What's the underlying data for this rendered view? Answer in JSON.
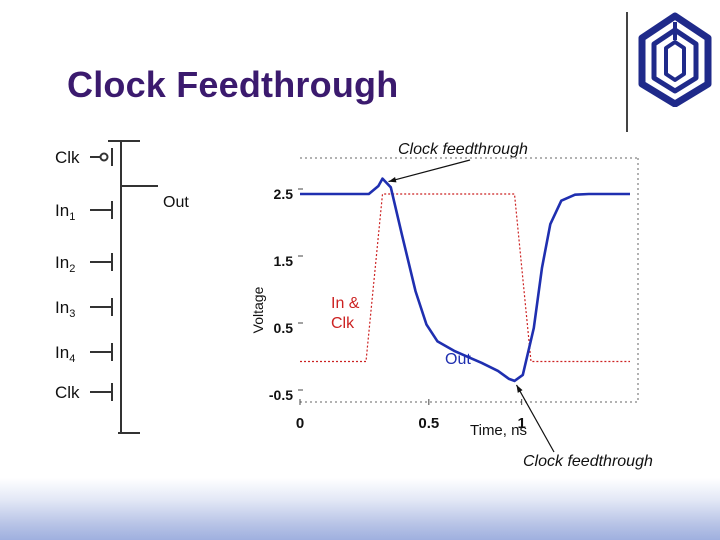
{
  "slide": {
    "title": "Clock Feedthrough"
  },
  "circuit": {
    "inputs": [
      {
        "label": "Clk",
        "sub": ""
      },
      {
        "label": "In",
        "sub": "1"
      },
      {
        "label": "In",
        "sub": "2"
      },
      {
        "label": "In",
        "sub": "3"
      },
      {
        "label": "In",
        "sub": "4"
      },
      {
        "label": "Clk",
        "sub": ""
      }
    ],
    "output_label": "Out"
  },
  "chart_data": {
    "type": "line",
    "xlabel": "Time, ns",
    "ylabel": "Voltage",
    "x_ticks": [
      "0",
      "0.5",
      "1"
    ],
    "y_ticks": [
      "2.5",
      "1.5",
      "0.5",
      "-0.5"
    ],
    "xlim": [
      0,
      1.2
    ],
    "ylim": [
      -0.5,
      2.9
    ],
    "series": [
      {
        "name": "In & Clk",
        "color": "#cc2222",
        "style": "dotted",
        "x": [
          0,
          0.24,
          0.3,
          0.78,
          0.84,
          1.2
        ],
        "y": [
          0,
          0,
          2.5,
          2.5,
          0,
          0
        ]
      },
      {
        "name": "Out",
        "color": "#1f2fb0",
        "style": "solid",
        "x": [
          0,
          0.2,
          0.25,
          0.285,
          0.3,
          0.33,
          0.37,
          0.42,
          0.46,
          0.5,
          0.56,
          0.62,
          0.66,
          0.72,
          0.76,
          0.78,
          0.81,
          0.85,
          0.88,
          0.91,
          0.95,
          1.0,
          1.05,
          1.2
        ],
        "y": [
          2.5,
          2.5,
          2.5,
          2.62,
          2.73,
          2.6,
          1.9,
          1.05,
          0.55,
          0.3,
          0.16,
          0.05,
          -0.02,
          -0.14,
          -0.26,
          -0.29,
          -0.2,
          0.5,
          1.4,
          2.05,
          2.4,
          2.49,
          2.5,
          2.5
        ]
      }
    ],
    "annotations": [
      {
        "text": "Clock feedthrough",
        "target": [
          0.3,
          2.73
        ]
      },
      {
        "text": "Clock feedthrough",
        "target": [
          0.78,
          -0.29
        ]
      }
    ],
    "grid": false
  },
  "colors": {
    "title": "#3b1a6e",
    "out_curve": "#1f2fb0",
    "input_curve": "#cc2222"
  }
}
